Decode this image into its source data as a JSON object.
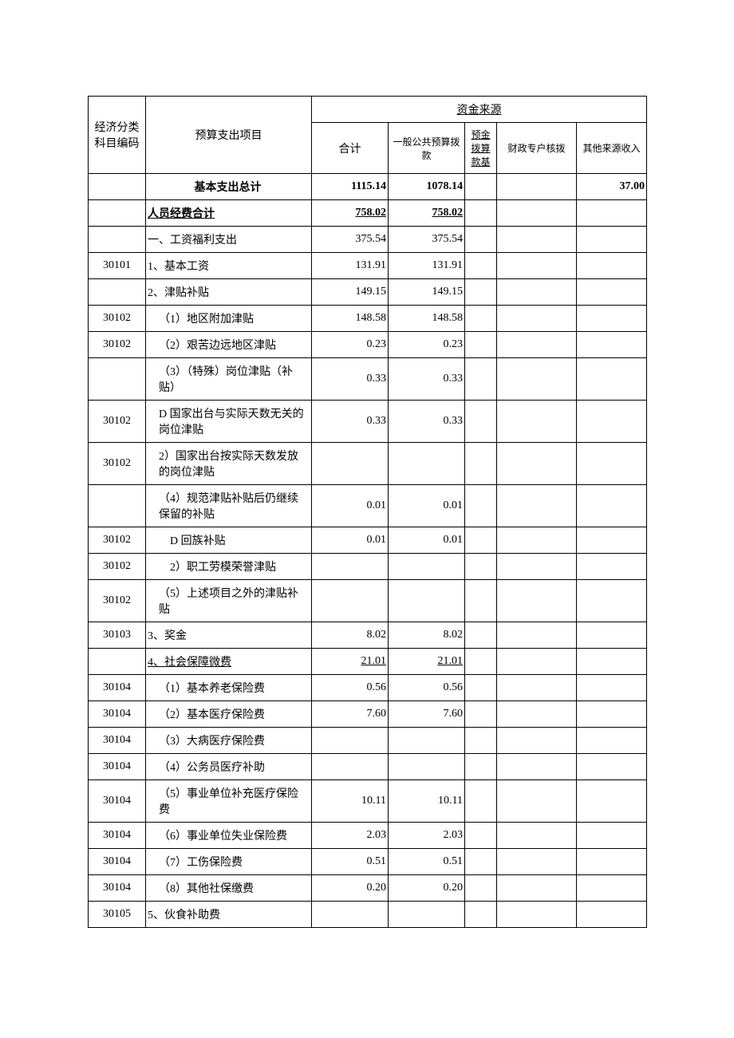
{
  "header": {
    "top_group": "资金来源",
    "col_code": "经济分类科目编码",
    "col_item": "预算支出项目",
    "col_total": "合计",
    "col_general": "一般公共预算拨款",
    "col_fund": "预金拨算款基",
    "col_special": "财政专户核拨",
    "col_other": "其他来源收入"
  },
  "rows": [
    {
      "code": "",
      "item": "基本支出总计",
      "total": "1115.14",
      "general": "1078.14",
      "fund": "",
      "special": "",
      "other": "37.00",
      "bold": true,
      "center_item": true
    },
    {
      "code": "",
      "item": "人员经费合计",
      "total": "758.02",
      "general": "758.02",
      "fund": "",
      "special": "",
      "other": "",
      "bold": true,
      "underline": true
    },
    {
      "code": "",
      "item": "一、工资福利支出",
      "total": "375.54",
      "general": "375.54",
      "fund": "",
      "special": "",
      "other": ""
    },
    {
      "code": "30101",
      "item": "1、基本工资",
      "total": "131.91",
      "general": "131.91",
      "fund": "",
      "special": "",
      "other": ""
    },
    {
      "code": "",
      "item": "2、津贴补贴",
      "total": "149.15",
      "general": "149.15",
      "fund": "",
      "special": "",
      "other": ""
    },
    {
      "code": "30102",
      "item": "（1）地区附加津贴",
      "total": "148.58",
      "general": "148.58",
      "fund": "",
      "special": "",
      "other": "",
      "indent": 1
    },
    {
      "code": "30102",
      "item": "（2）艰苦边远地区津贴",
      "total": "0.23",
      "general": "0.23",
      "fund": "",
      "special": "",
      "other": "",
      "indent": 1
    },
    {
      "code": "",
      "item": "（3）（特殊）岗位津贴（补贴）",
      "total": "0.33",
      "general": "0.33",
      "fund": "",
      "special": "",
      "other": "",
      "indent": 1
    },
    {
      "code": "30102",
      "item": "D 国家出台与实际天数无关的岗位津贴",
      "total": "0.33",
      "general": "0.33",
      "fund": "",
      "special": "",
      "other": "",
      "indent": 1
    },
    {
      "code": "30102",
      "item": "2）国家出台按实际天数发放的岗位津贴",
      "total": "",
      "general": "",
      "fund": "",
      "special": "",
      "other": "",
      "indent": 1
    },
    {
      "code": "",
      "item": "（4）规范津贴补贴后仍继续保留的补贴",
      "total": "0.01",
      "general": "0.01",
      "fund": "",
      "special": "",
      "other": "",
      "indent": 1
    },
    {
      "code": "30102",
      "item": "D 回族补贴",
      "total": "0.01",
      "general": "0.01",
      "fund": "",
      "special": "",
      "other": "",
      "indent": 2
    },
    {
      "code": "30102",
      "item": "2）职工劳模荣誉津贴",
      "total": "",
      "general": "",
      "fund": "",
      "special": "",
      "other": "",
      "indent": 2
    },
    {
      "code": "30102",
      "item": "（5）上述项目之外的津贴补贴",
      "total": "",
      "general": "",
      "fund": "",
      "special": "",
      "other": "",
      "indent": 1
    },
    {
      "code": "30103",
      "item": "3、奖金",
      "total": "8.02",
      "general": "8.02",
      "fund": "",
      "special": "",
      "other": ""
    },
    {
      "code": "",
      "item": "4、社会保障微费",
      "total": "21.01",
      "general": "21.01",
      "fund": "",
      "special": "",
      "other": "",
      "underline": true
    },
    {
      "code": "30104",
      "item": "（1）基本养老保险费",
      "total": "0.56",
      "general": "0.56",
      "fund": "",
      "special": "",
      "other": "",
      "indent": 1
    },
    {
      "code": "30104",
      "item": "（2）基本医疗保险费",
      "total": "7.60",
      "general": "7.60",
      "fund": "",
      "special": "",
      "other": "",
      "indent": 1
    },
    {
      "code": "30104",
      "item": "（3）大病医疗保险费",
      "total": "",
      "general": "",
      "fund": "",
      "special": "",
      "other": "",
      "indent": 1
    },
    {
      "code": "30104",
      "item": "（4）公务员医疗补助",
      "total": "",
      "general": "",
      "fund": "",
      "special": "",
      "other": "",
      "indent": 1
    },
    {
      "code": "30104",
      "item": "（5）事业单位补充医疗保险费",
      "total": "10.11",
      "general": "10.11",
      "fund": "",
      "special": "",
      "other": "",
      "indent": 1
    },
    {
      "code": "30104",
      "item": "（6）事业单位失业保险费",
      "total": "2.03",
      "general": "2.03",
      "fund": "",
      "special": "",
      "other": "",
      "indent": 1
    },
    {
      "code": "30104",
      "item": "（7）工伤保险费",
      "total": "0.51",
      "general": "0.51",
      "fund": "",
      "special": "",
      "other": "",
      "indent": 1
    },
    {
      "code": "30104",
      "item": "（8）其他社保缴费",
      "total": "0.20",
      "general": "0.20",
      "fund": "",
      "special": "",
      "other": "",
      "indent": 1
    },
    {
      "code": "30105",
      "item": "5、伙食补助费",
      "total": "",
      "general": "",
      "fund": "",
      "special": "",
      "other": ""
    }
  ]
}
